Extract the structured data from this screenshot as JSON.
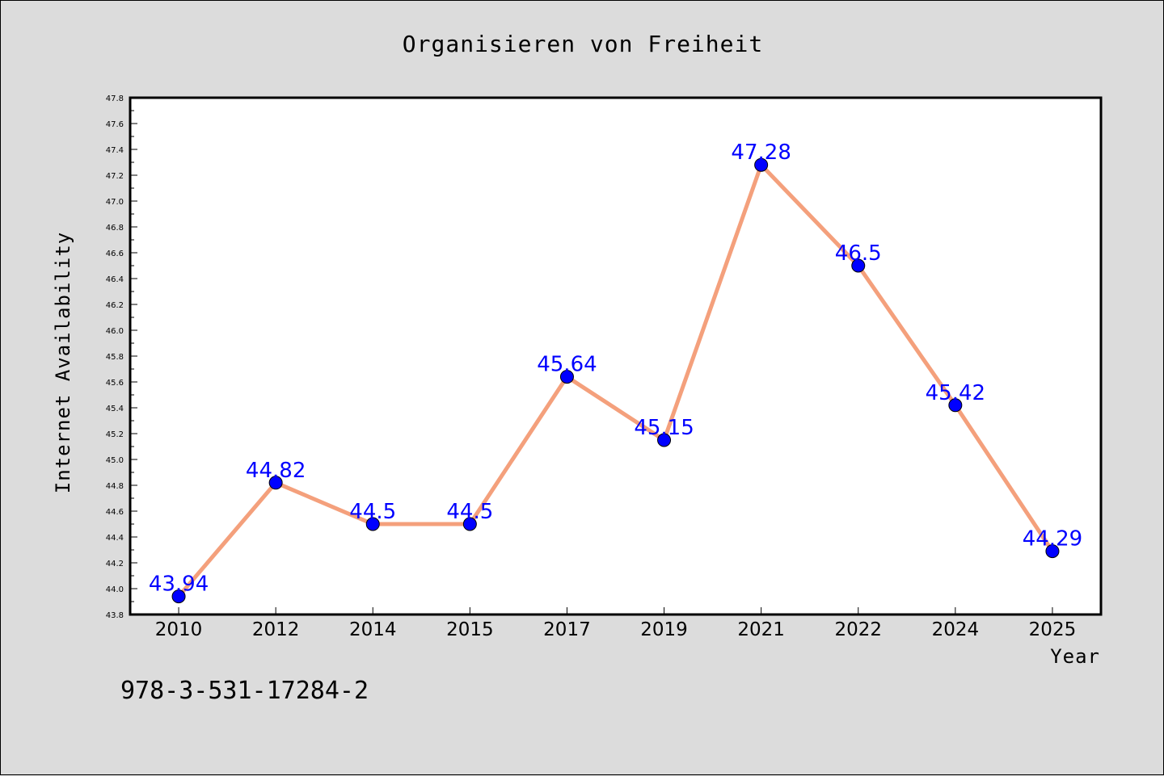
{
  "chart_data": {
    "type": "line",
    "title": "Organisieren von Freiheit",
    "xlabel": "Year",
    "ylabel": "Internet Availability",
    "categories": [
      "2010",
      "2012",
      "2014",
      "2015",
      "2017",
      "2019",
      "2021",
      "2022",
      "2024",
      "2025"
    ],
    "series": [
      {
        "values": [
          43.94,
          44.82,
          44.5,
          44.5,
          45.64,
          45.15,
          47.28,
          46.5,
          45.42,
          44.29
        ],
        "data_labels": [
          "43.94",
          "44.82",
          "44.5",
          "44.5",
          "45.64",
          "45.15",
          "47.28",
          "46.5",
          "45.42",
          "44.29"
        ]
      }
    ],
    "ylim": [
      43.8,
      47.8
    ],
    "yticks": [
      "43.8",
      "44.0",
      "44.2",
      "44.4",
      "44.6",
      "44.8",
      "45.0",
      "45.2",
      "45.4",
      "45.6",
      "45.8",
      "46.0",
      "46.2",
      "46.4",
      "46.6",
      "46.8",
      "47.0",
      "47.2",
      "47.4",
      "47.6",
      "47.8"
    ],
    "grid": false,
    "line_color": "#f4a07c",
    "marker_color": "#0000ff",
    "label_color": "#0000ff",
    "footnote": "978-3-531-17284-2"
  }
}
